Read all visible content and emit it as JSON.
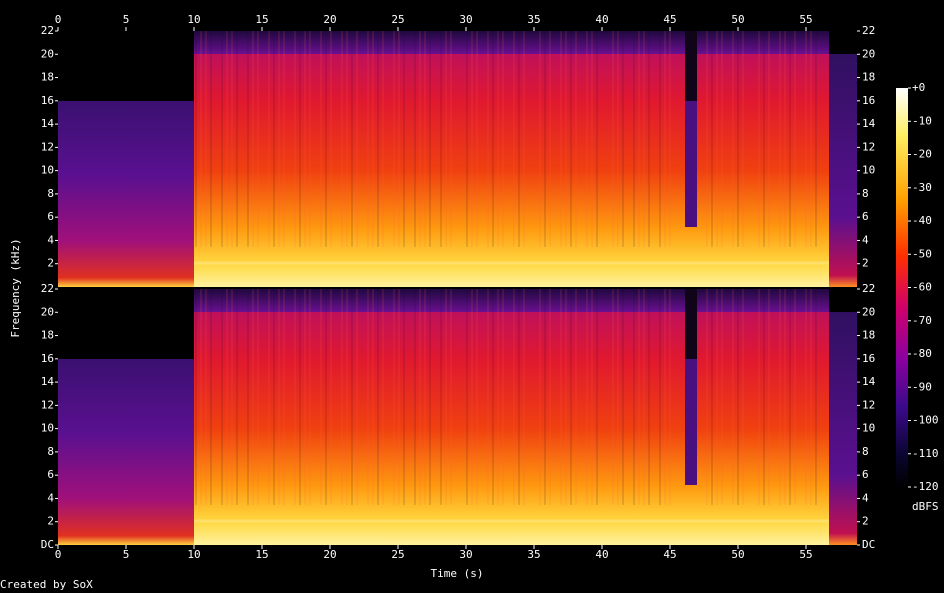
{
  "chart_data": {
    "type": "spectrogram",
    "x_label": "Time (s)",
    "y_label": "Frequency (kHz)",
    "footer": "Created by SoX",
    "xlim": [
      0,
      58.75
    ],
    "xticks": [
      0,
      5,
      10,
      15,
      20,
      25,
      30,
      35,
      40,
      45,
      50,
      55
    ],
    "channels": [
      {
        "ylim": [
          0,
          22
        ],
        "yticks": [
          2,
          4,
          6,
          8,
          10,
          12,
          14,
          16,
          18,
          20,
          22
        ]
      },
      {
        "ylim": [
          0,
          22
        ],
        "yticks": [
          {
            "value": 0,
            "label": "DC"
          },
          2,
          4,
          6,
          8,
          10,
          12,
          14,
          16,
          18,
          20,
          22
        ]
      }
    ],
    "colorbar": {
      "label": "dBFS",
      "lim": [
        -120,
        0
      ],
      "ticks": [
        {
          "value": 0,
          "label": "+0"
        },
        -10,
        -20,
        -30,
        -40,
        -50,
        -60,
        -70,
        -80,
        -90,
        -100,
        -110,
        -120
      ]
    }
  }
}
